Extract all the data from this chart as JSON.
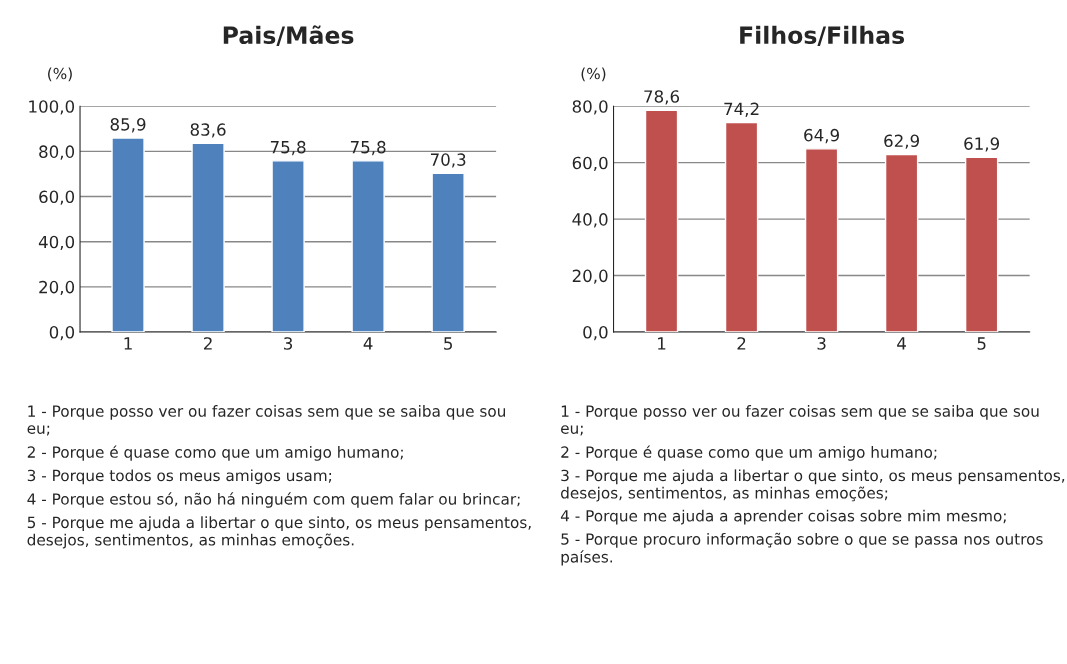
{
  "chart_data": [
    {
      "type": "bar",
      "title": "Pais/Mães",
      "ylabel": "(%)",
      "categories": [
        "1",
        "2",
        "3",
        "4",
        "5"
      ],
      "values": [
        85.9,
        83.6,
        75.8,
        75.8,
        70.3
      ],
      "value_labels": [
        "85,9",
        "83,6",
        "75,8",
        "75,8",
        "70,3"
      ],
      "color": "#4f81bd",
      "ylim": [
        0,
        100
      ],
      "yticks": [
        {
          "value": 0,
          "label": "0,0"
        },
        {
          "value": 20,
          "label": "20,0"
        },
        {
          "value": 40,
          "label": "40,0"
        },
        {
          "value": 60,
          "label": "60,0"
        },
        {
          "value": 80,
          "label": "80,0"
        },
        {
          "value": 100,
          "label": "100,0"
        }
      ],
      "grid": "y",
      "annotations": [
        "1 - Porque posso ver ou fazer coisas sem que se saiba que sou eu;",
        "2 - Porque é quase como que um amigo humano;",
        "3 - Porque todos os meus amigos usam;",
        "4 - Porque estou só, não há ninguém com quem falar ou brincar;",
        "5 - Porque me ajuda a libertar o que sinto, os meus pensamentos, desejos, sentimentos, as minhas emoções."
      ]
    },
    {
      "type": "bar",
      "title": "Filhos/Filhas",
      "ylabel": "(%)",
      "categories": [
        "1",
        "2",
        "3",
        "4",
        "5"
      ],
      "values": [
        78.6,
        74.2,
        64.9,
        62.9,
        61.9
      ],
      "value_labels": [
        "78,6",
        "74,2",
        "64,9",
        "62,9",
        "61,9"
      ],
      "color": "#c0504d",
      "ylim": [
        0,
        80
      ],
      "yticks": [
        {
          "value": 0,
          "label": "0,0"
        },
        {
          "value": 20,
          "label": "20,0"
        },
        {
          "value": 40,
          "label": "40,0"
        },
        {
          "value": 60,
          "label": "60,0"
        },
        {
          "value": 80,
          "label": "80,0"
        }
      ],
      "grid": "y",
      "annotations": [
        "1 - Porque posso ver ou fazer coisas sem que se saiba que sou eu;",
        "2 - Porque é quase como que um amigo humano;",
        "3 - Porque me ajuda a libertar o que sinto, os meus pensamentos, desejos, sentimentos, as minhas emoções;",
        "4 - Porque me ajuda a aprender coisas sobre mim mesmo;",
        "5 - Porque procuro informação sobre o que se passa nos outros países."
      ]
    }
  ]
}
